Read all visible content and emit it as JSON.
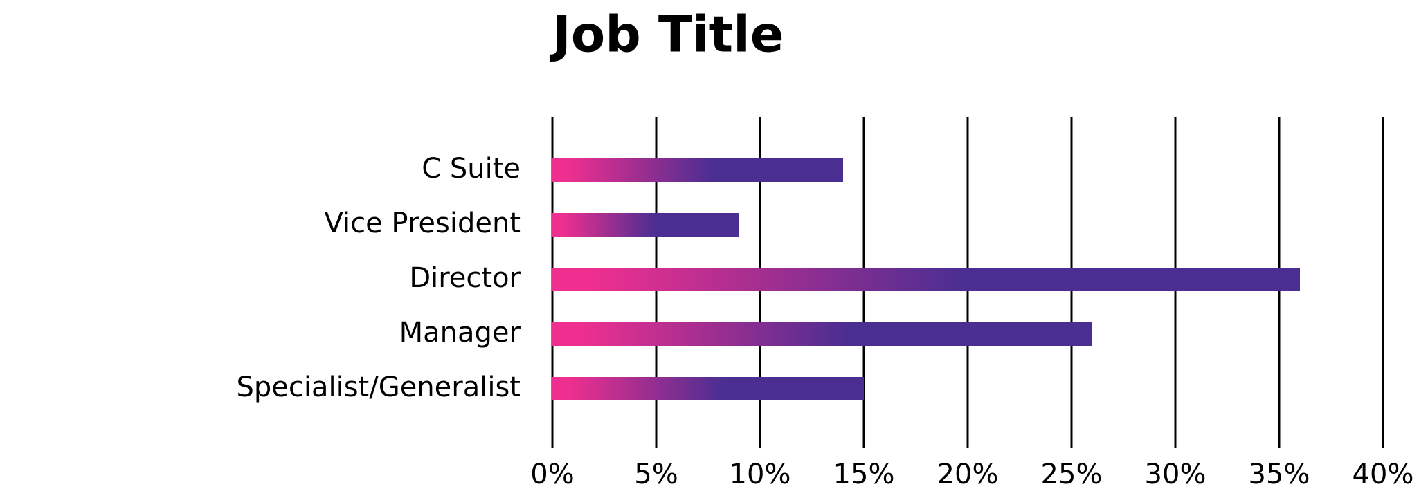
{
  "chart_data": {
    "type": "hbar",
    "title": "Job Title",
    "categories": [
      "C Suite",
      "Vice President",
      "Director",
      "Manager",
      "Specialist/Generalist"
    ],
    "values": [
      14,
      9,
      36,
      26,
      15
    ],
    "gradient": [
      "#ef2f8f",
      "#4b2e92"
    ],
    "xlim": [
      0,
      40
    ],
    "xticks": [
      {
        "value": 0,
        "label": "0%"
      },
      {
        "value": 5,
        "label": "5%"
      },
      {
        "value": 10,
        "label": "10%"
      },
      {
        "value": 15,
        "label": "15%"
      },
      {
        "value": 20,
        "label": "20%"
      },
      {
        "value": 25,
        "label": "25%"
      },
      {
        "value": 30,
        "label": "30%"
      },
      {
        "value": 35,
        "label": "35%"
      },
      {
        "value": 40,
        "label": "40%"
      }
    ],
    "grid": true
  }
}
